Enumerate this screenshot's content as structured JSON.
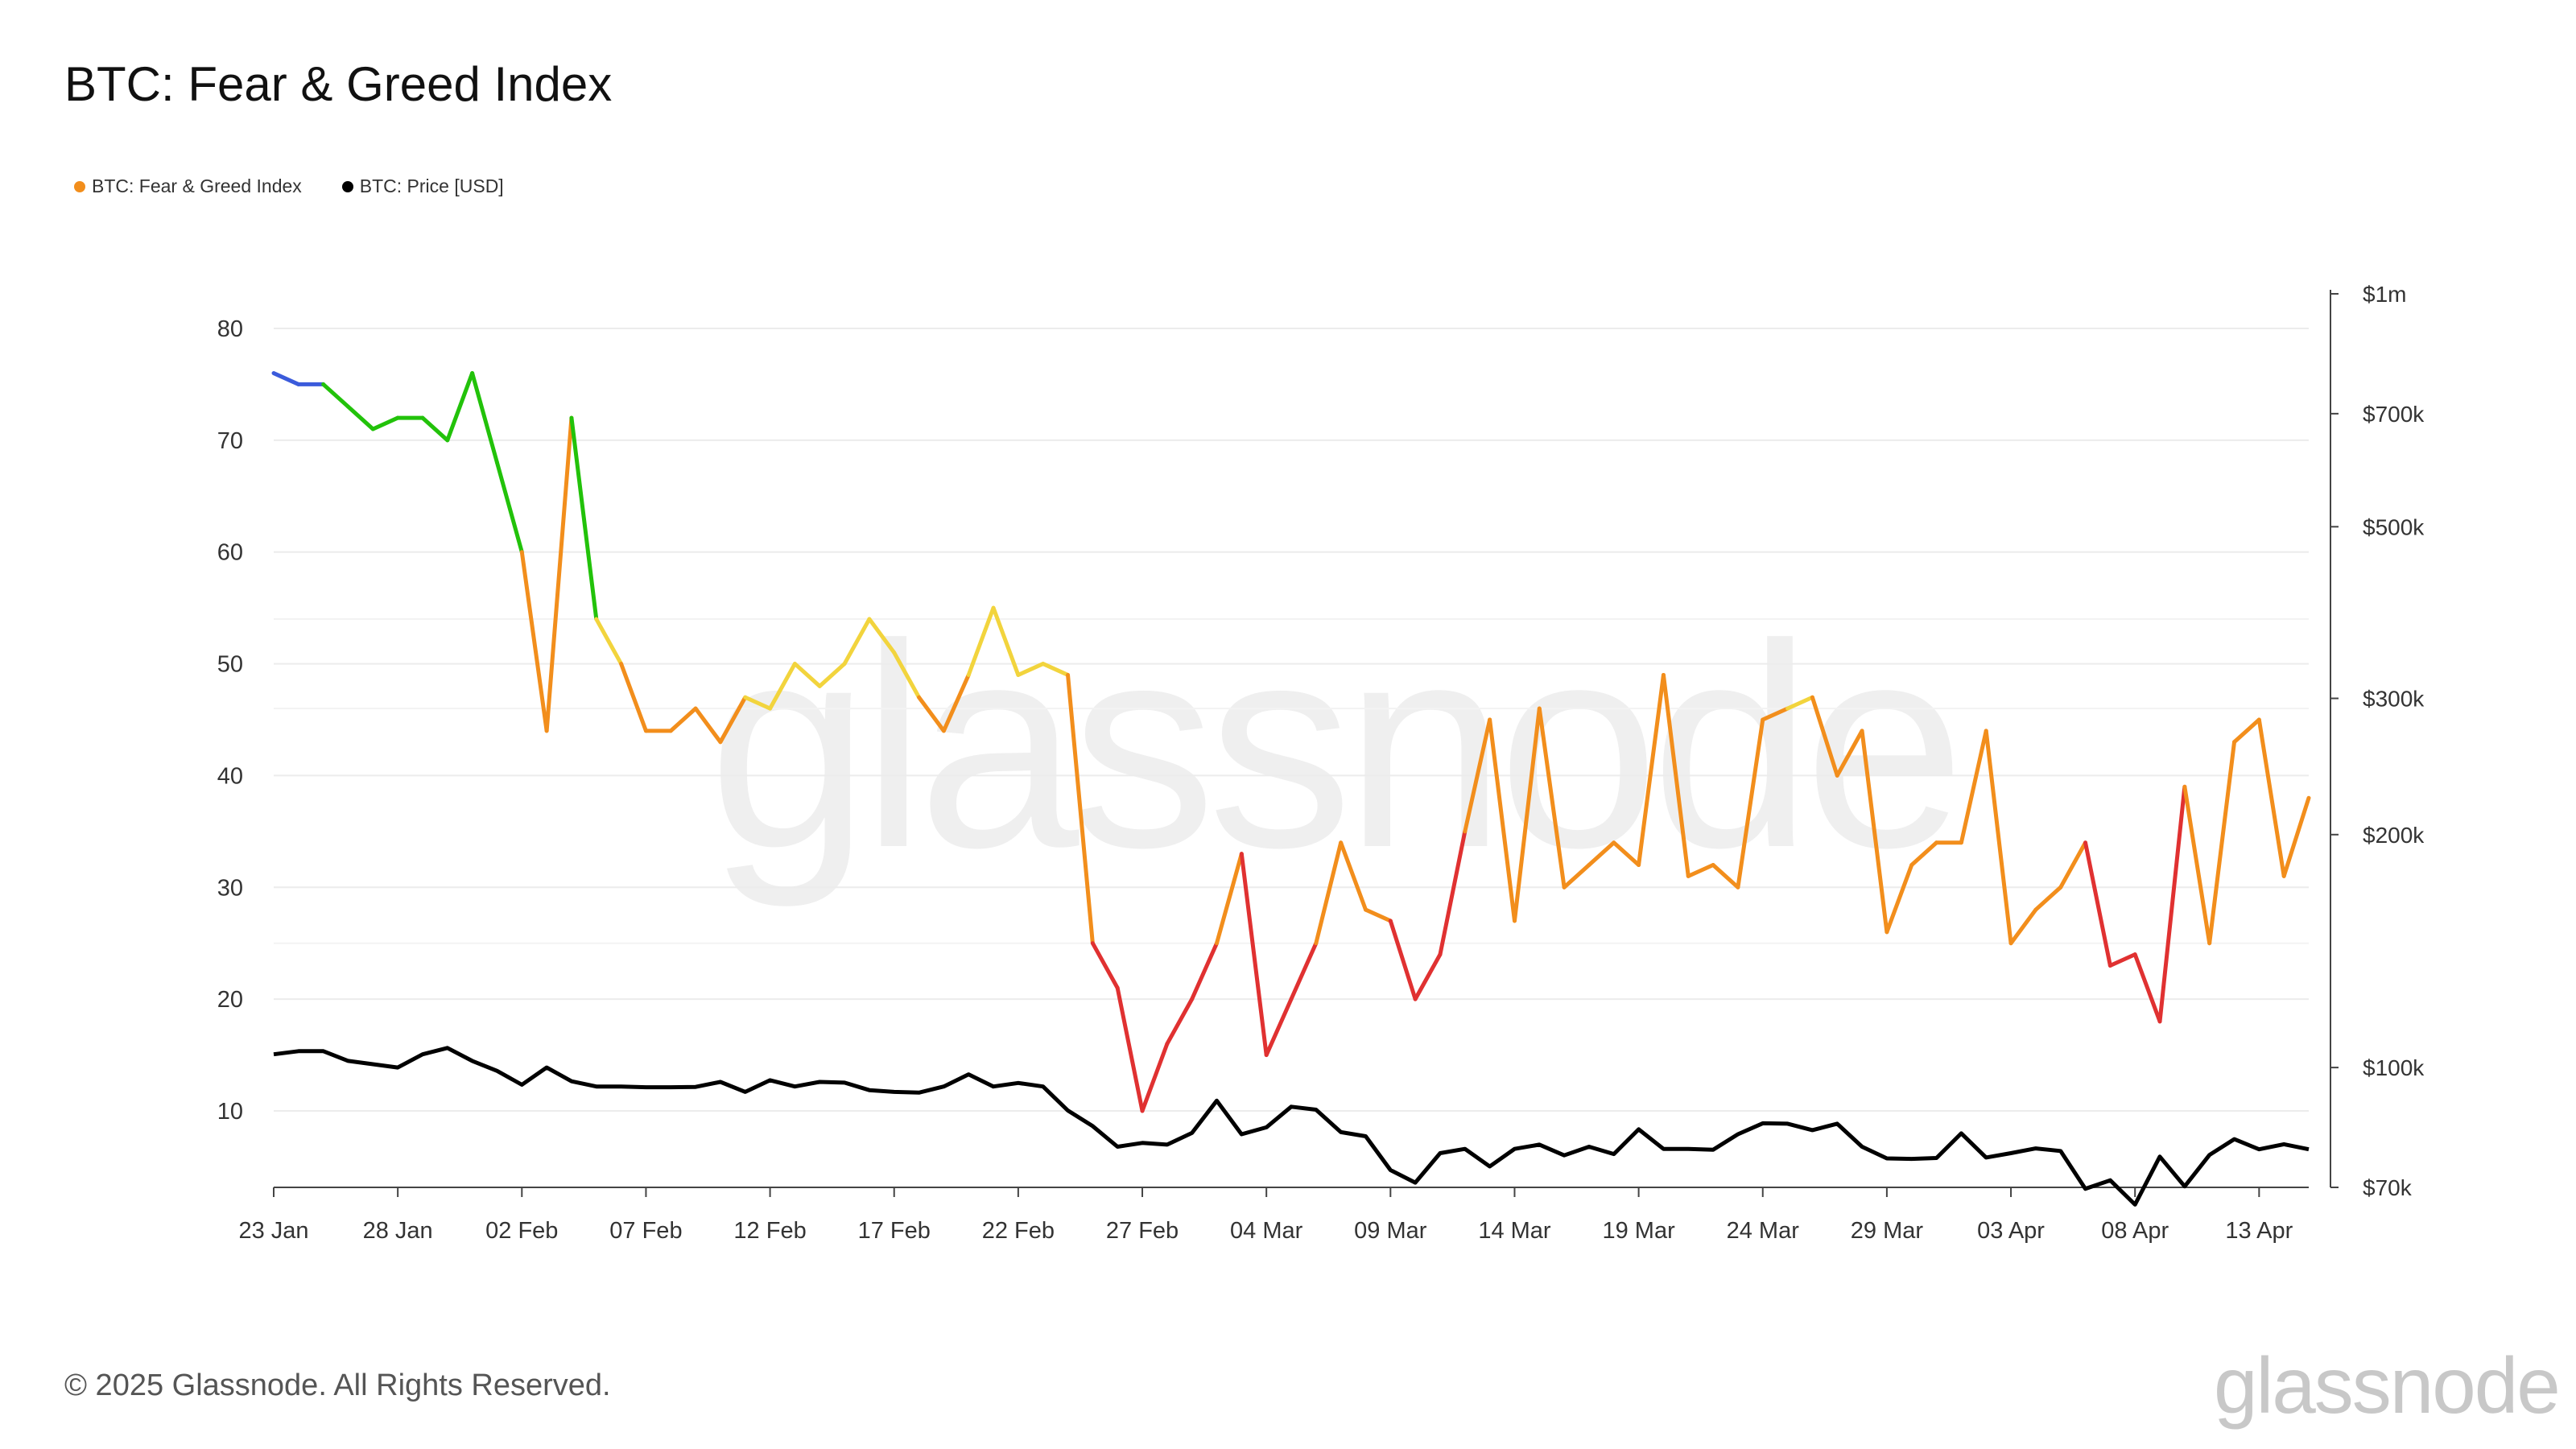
{
  "title": "BTC: Fear & Greed Index",
  "legend": [
    {
      "label": "BTC: Fear & Greed Index",
      "color": "#f28e1c"
    },
    {
      "label": "BTC: Price [USD]",
      "color": "#000000"
    }
  ],
  "footer": {
    "copyright": "© 2025 Glassnode. All Rights Reserved.",
    "brand": "glassnode"
  },
  "watermark": "glassnode",
  "chart_data": {
    "type": "line",
    "x_start_date": "2025-01-23",
    "x_end_date": "2025-04-15",
    "x_ticks": [
      "23 Jan",
      "28 Jan",
      "02 Feb",
      "07 Feb",
      "12 Feb",
      "17 Feb",
      "22 Feb",
      "27 Feb",
      "04 Mar",
      "09 Mar",
      "14 Mar",
      "19 Mar",
      "24 Mar",
      "29 Mar",
      "03 Apr",
      "08 Apr",
      "13 Apr"
    ],
    "y_left": {
      "range": [
        0,
        80
      ],
      "ticks": [
        10,
        20,
        30,
        40,
        50,
        60,
        70,
        80
      ]
    },
    "y_right": {
      "scale": "log",
      "range": [
        70000,
        1000000
      ],
      "ticks": [
        {
          "label": "$70k",
          "value": 70000
        },
        {
          "label": "$100k",
          "value": 100000
        },
        {
          "label": "$200k",
          "value": 200000
        },
        {
          "label": "$300k",
          "value": 300000
        },
        {
          "label": "$500k",
          "value": 500000
        },
        {
          "label": "$700k",
          "value": 700000
        },
        {
          "label": "$1m",
          "value": 1000000
        }
      ]
    },
    "grid": true,
    "legend_position": "top-left",
    "zone_colors": {
      "extreme_greed": "#3b5bdb",
      "greed": "#22c20a",
      "neutral": "#f2d43d",
      "fear": "#f28e1c",
      "extreme_fear": "#e03131"
    },
    "series": [
      {
        "name": "BTC: Fear & Greed Index",
        "axis": "left",
        "values": [
          76,
          75,
          75,
          73,
          71,
          72,
          72,
          70,
          76,
          68,
          60,
          44,
          72,
          54,
          50,
          44,
          44,
          46,
          43,
          47,
          46,
          50,
          48,
          50,
          54,
          51,
          47,
          44,
          49,
          55,
          49,
          50,
          49,
          25,
          21,
          10,
          16,
          20,
          25,
          33,
          15,
          20,
          25,
          34,
          28,
          27,
          20,
          24,
          35,
          45,
          27,
          46,
          30,
          32,
          34,
          32,
          49,
          31,
          32,
          30,
          45,
          46,
          47,
          40,
          44,
          26,
          32,
          34,
          34,
          44,
          25,
          28,
          30,
          34,
          23,
          24,
          18,
          39,
          25,
          43,
          45,
          31,
          38
        ]
      },
      {
        "name": "BTC: Price [USD]",
        "axis": "right",
        "values": [
          104000,
          105000,
          105000,
          102000,
          101000,
          100000,
          104000,
          106000,
          102000,
          99000,
          95000,
          100000,
          96000,
          94500,
          94500,
          94300,
          94300,
          94400,
          95800,
          93000,
          96300,
          94500,
          95800,
          95600,
          93500,
          93000,
          92800,
          94500,
          98000,
          94500,
          95500,
          94500,
          88000,
          84000,
          79000,
          79900,
          79500,
          82300,
          90600,
          82000,
          83700,
          89000,
          88200,
          82500,
          81500,
          73700,
          71000,
          77500,
          78500,
          74500,
          78500,
          79500,
          77000,
          79000,
          77300,
          83200,
          78500,
          78500,
          78300,
          82000,
          84700,
          84600,
          83000,
          84600,
          79000,
          76300,
          76200,
          76400,
          82200,
          76500,
          77500,
          78600,
          78000,
          69700,
          71500,
          66500,
          76700,
          70200,
          77100,
          80800,
          78400,
          79600,
          78400
        ]
      }
    ]
  }
}
